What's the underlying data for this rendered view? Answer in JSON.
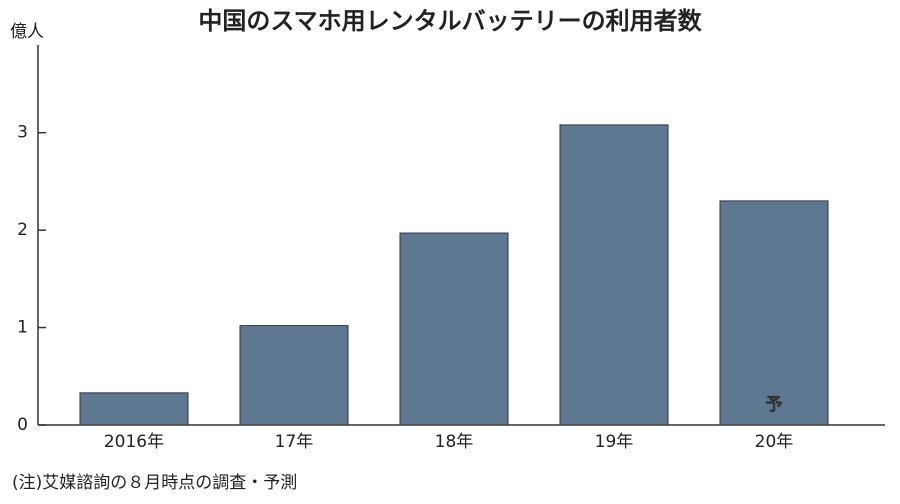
{
  "chart_data": {
    "type": "bar",
    "title": "中国のスマホ用レンタルバッテリーの利用者数",
    "y_label": "億人",
    "categories": [
      "2016年",
      "17年",
      "18年",
      "19年",
      "20年"
    ],
    "values": [
      0.33,
      1.02,
      1.97,
      3.08,
      2.3
    ],
    "color": "#5f7892",
    "ylim": [
      0,
      3.9
    ],
    "yticks": [
      0,
      1,
      2,
      3
    ],
    "grid": false,
    "annotation": "予",
    "note": "(注)艾媒諮詢の８月時点の調査・予測"
  }
}
